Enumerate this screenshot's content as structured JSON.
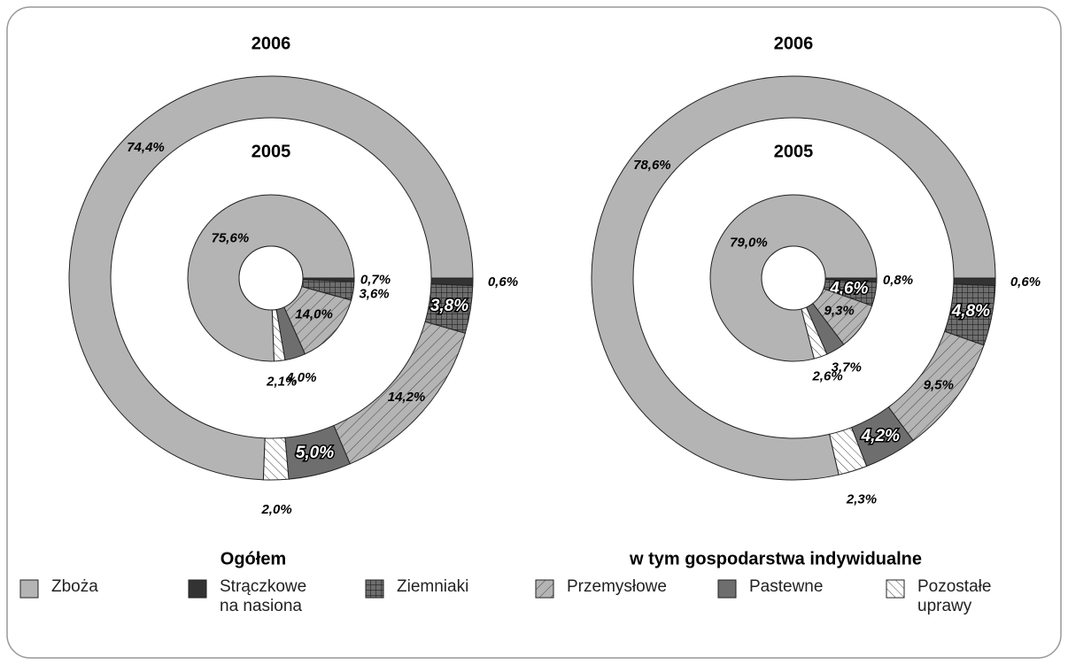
{
  "chart_data": {
    "type": "pie",
    "categories": [
      "Zboża",
      "Strączkowe na nasiona",
      "Ziemniaki",
      "Przemysłowe",
      "Pastewne",
      "Pozostałe uprawy"
    ],
    "colors": [
      "#b4b4b4",
      "#333333",
      "#6e6e6e",
      "#b4b4b4",
      "#6e6e6e",
      "#ffffff"
    ],
    "patterns": [
      "none",
      "none",
      "grid",
      "hatch",
      "none",
      "backhatch"
    ],
    "pies": [
      {
        "title": "Ogółem",
        "series": [
          {
            "name": "2006",
            "values": [
              74.4,
              0.6,
              3.8,
              14.2,
              5.0,
              2.0
            ],
            "value_labels": [
              "74,4%",
              "0,6%",
              "3,8%",
              "14,2%",
              "5,0%",
              "2,0%"
            ]
          },
          {
            "name": "2005",
            "values": [
              75.6,
              0.7,
              3.6,
              14.0,
              4.0,
              2.1
            ],
            "value_labels": [
              "75,6%",
              "0,7%",
              "3,6%",
              "14,0%",
              "4,0%",
              "2,1%"
            ]
          }
        ]
      },
      {
        "title": "w tym gospodarstwa indywidualne",
        "series": [
          {
            "name": "2006",
            "values": [
              78.6,
              0.6,
              4.8,
              9.5,
              4.2,
              2.3
            ],
            "value_labels": [
              "78,6%",
              "0,6%",
              "4,8%",
              "9,5%",
              "4,2%",
              "2,3%"
            ]
          },
          {
            "name": "2005",
            "values": [
              79.0,
              0.8,
              4.6,
              9.3,
              3.7,
              2.6
            ],
            "value_labels": [
              "79,0%",
              "0,8%",
              "4,6%",
              "9,3%",
              "3,7%",
              "2,6%"
            ]
          }
        ]
      }
    ]
  }
}
